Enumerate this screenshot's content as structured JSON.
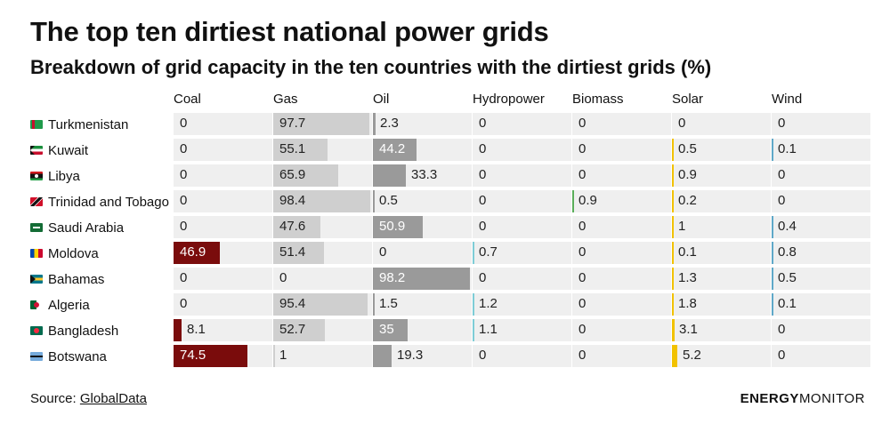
{
  "title": "The top ten dirtiest national power grids",
  "subtitle": "Breakdown of grid capacity in the ten countries with the dirtiest grids (%)",
  "source_label": "Source: ",
  "source_link": "GlobalData",
  "brand": {
    "bold": "ENERGY",
    "light": "MONITOR"
  },
  "chart_data": {
    "type": "table",
    "columns": [
      "Coal",
      "Gas",
      "Oil",
      "Hydropower",
      "Biomass",
      "Solar",
      "Wind"
    ],
    "column_colors": [
      "#7a0c0c",
      "#cfcfcf",
      "#9a9a9a",
      "#7ecdd6",
      "#5aae5a",
      "#f2c200",
      "#5fa8c8"
    ],
    "bar_max": 100,
    "rows": [
      {
        "country": "Turkmenistan",
        "flag": "turkmenistan-flag-icon",
        "values": [
          0,
          97.7,
          2.3,
          0,
          0,
          0,
          0
        ]
      },
      {
        "country": "Kuwait",
        "flag": "kuwait-flag-icon",
        "values": [
          0,
          55.1,
          44.2,
          0,
          0,
          0.5,
          0.1
        ]
      },
      {
        "country": "Libya",
        "flag": "libya-flag-icon",
        "values": [
          0,
          65.9,
          33.3,
          0,
          0,
          0.9,
          0
        ]
      },
      {
        "country": "Trinidad and Tobago",
        "flag": "trinidad-and-tobago-flag-icon",
        "values": [
          0,
          98.4,
          0.5,
          0,
          0.9,
          0.2,
          0
        ]
      },
      {
        "country": "Saudi Arabia",
        "flag": "saudi-arabia-flag-icon",
        "values": [
          0,
          47.6,
          50.9,
          0,
          0,
          1,
          0.4
        ]
      },
      {
        "country": "Moldova",
        "flag": "moldova-flag-icon",
        "values": [
          46.9,
          51.4,
          0,
          0.7,
          0,
          0.1,
          0.8
        ]
      },
      {
        "country": "Bahamas",
        "flag": "bahamas-flag-icon",
        "values": [
          0,
          0,
          98.2,
          0,
          0,
          1.3,
          0.5
        ]
      },
      {
        "country": "Algeria",
        "flag": "algeria-flag-icon",
        "values": [
          0,
          95.4,
          1.5,
          1.2,
          0,
          1.8,
          0.1
        ]
      },
      {
        "country": "Bangladesh",
        "flag": "bangladesh-flag-icon",
        "values": [
          8.1,
          52.7,
          35,
          1.1,
          0,
          3.1,
          0
        ]
      },
      {
        "country": "Botswana",
        "flag": "botswana-flag-icon",
        "values": [
          74.5,
          1,
          19.3,
          0,
          0,
          5.2,
          0
        ]
      }
    ]
  }
}
